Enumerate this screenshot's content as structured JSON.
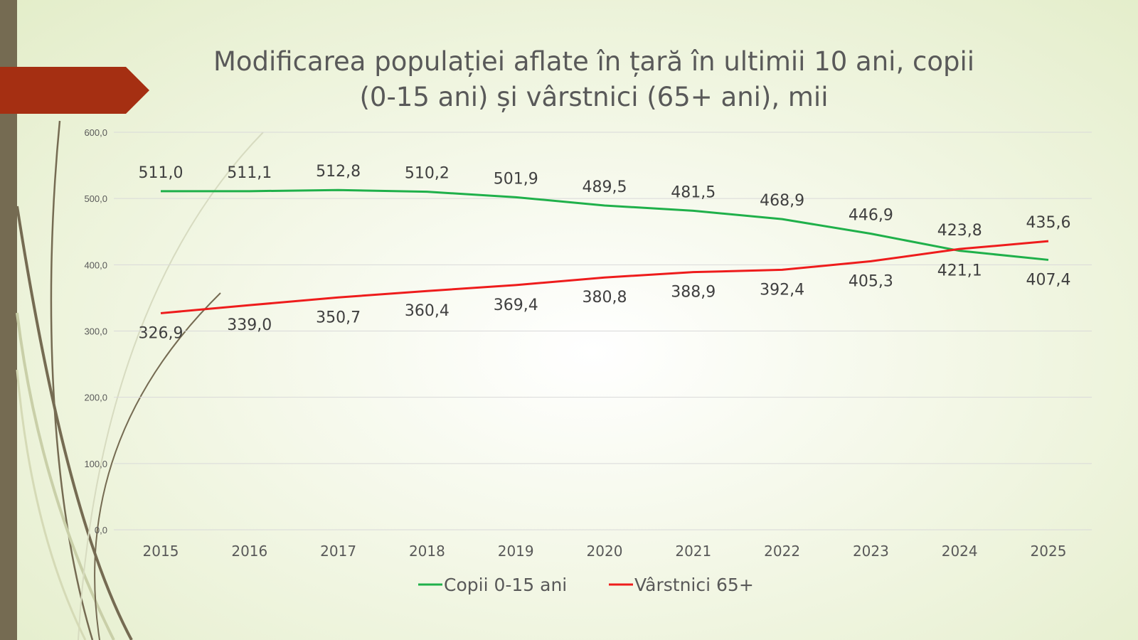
{
  "slide": {
    "title_line1": "Modificarea populației aflate în țară în ultimii 10 ani, copii",
    "title_line2": "(0-15 ani) și vârstnici (65+ ani), mii",
    "accent_color": "#a52f12",
    "bar_color": "#756b52"
  },
  "chart_data": {
    "type": "line",
    "title": "Modificarea populației aflate în țară în ultimii 10 ani, copii (0-15 ani) și vârstnici (65+ ani), mii",
    "categories": [
      "2015",
      "2016",
      "2017",
      "2018",
      "2019",
      "2020",
      "2021",
      "2022",
      "2023",
      "2024",
      "2025"
    ],
    "ylim": [
      0,
      600
    ],
    "yticks": [
      "0,0",
      "100,0",
      "200,0",
      "300,0",
      "400,0",
      "500,0",
      "600,0"
    ],
    "grid": true,
    "legend_position": "bottom",
    "series": [
      {
        "name": "Copii 0-15 ani",
        "color": "#1fb04a",
        "values": [
          511.0,
          511.1,
          512.8,
          510.2,
          501.9,
          489.5,
          481.5,
          468.9,
          446.9,
          421.1,
          407.4
        ],
        "labels": [
          "511,0",
          "511,1",
          "512,8",
          "510,2",
          "501,9",
          "489,5",
          "481,5",
          "468,9",
          "446,9",
          "421,1",
          "407,4"
        ]
      },
      {
        "name": "Vârstnici 65+",
        "color": "#ee1c1c",
        "values": [
          326.9,
          339.0,
          350.7,
          360.4,
          369.4,
          380.8,
          388.9,
          392.4,
          405.3,
          423.8,
          435.6
        ],
        "labels": [
          "326,9",
          "339,0",
          "350,7",
          "360,4",
          "369,4",
          "380,8",
          "388,9",
          "392,4",
          "405,3",
          "423,8",
          "435,6"
        ]
      }
    ]
  }
}
